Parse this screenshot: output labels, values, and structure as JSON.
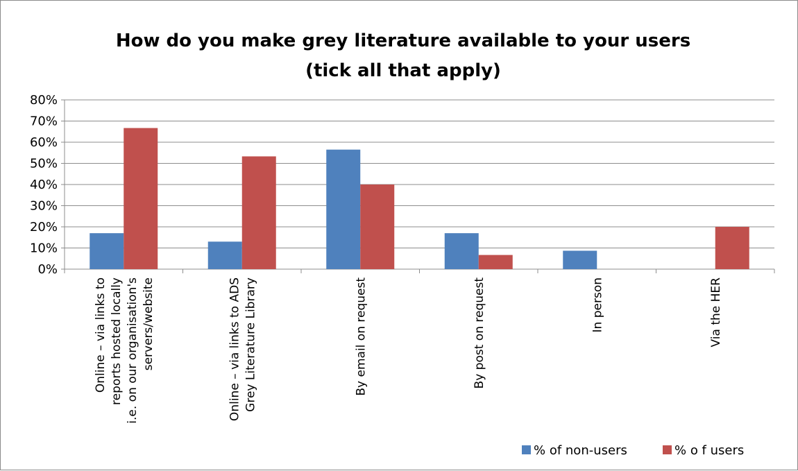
{
  "chart_data": {
    "type": "bar",
    "title_lines": [
      "How do you make grey literature available to your users",
      "(tick all that apply)"
    ],
    "categories": [
      [
        "Online – via links to",
        "reports hosted locally",
        "i.e. on our organisation's",
        "servers/website"
      ],
      [
        "Online – via links to ADS",
        "Grey Literature Library"
      ],
      [
        "By email on request"
      ],
      [
        "By post on request"
      ],
      [
        "In person"
      ],
      [
        "Via the HER"
      ]
    ],
    "series": [
      {
        "name": "% of non-users",
        "color": "#4F81BD",
        "values": [
          17,
          13,
          56.5,
          17,
          8.7,
          0
        ]
      },
      {
        "name": "% o f users",
        "color": "#C0504D",
        "values": [
          66.7,
          53.3,
          40,
          6.7,
          0,
          20
        ]
      }
    ],
    "ylim": [
      0,
      80
    ],
    "y_ticks": [
      "0%",
      "10%",
      "20%",
      "30%",
      "40%",
      "50%",
      "60%",
      "70%",
      "80%"
    ],
    "grid": true,
    "legend_position": "bottom-right"
  }
}
